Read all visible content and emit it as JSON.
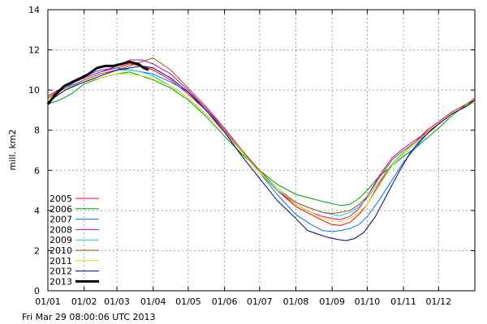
{
  "chart_data": {
    "type": "line",
    "ylabel": "mill. km2",
    "ylim": [
      0,
      14
    ],
    "yticks": [
      "0",
      "2",
      "4",
      "6",
      "8",
      "10",
      "12",
      "14"
    ],
    "xlim": [
      0,
      365
    ],
    "xticks": [
      {
        "label": "01/01",
        "day": 0
      },
      {
        "label": "01/02",
        "day": 31
      },
      {
        "label": "01/03",
        "day": 59
      },
      {
        "label": "01/04",
        "day": 90
      },
      {
        "label": "01/05",
        "day": 120
      },
      {
        "label": "01/06",
        "day": 151
      },
      {
        "label": "01/07",
        "day": 181
      },
      {
        "label": "01/08",
        "day": 212
      },
      {
        "label": "01/09",
        "day": 243
      },
      {
        "label": "01/10",
        "day": 273
      },
      {
        "label": "01/11",
        "day": 304
      },
      {
        "label": "01/12",
        "day": 334
      }
    ],
    "grid": true,
    "legend_position": "lower-left",
    "footer": "Fri Mar 29 08:00:06 UTC 2013",
    "series": [
      {
        "name": "2005",
        "color": "#ff0000",
        "width": 1,
        "x": [
          0,
          15,
          31,
          45,
          59,
          70,
          80,
          90,
          105,
          120,
          135,
          151,
          166,
          181,
          196,
          212,
          225,
          235,
          243,
          250,
          258,
          266,
          273,
          283,
          294,
          304,
          314,
          324,
          334,
          345,
          358,
          365
        ],
        "y": [
          9.7,
          10.2,
          10.6,
          10.9,
          11.1,
          11.3,
          11.2,
          11.0,
          10.5,
          9.8,
          9.0,
          8.0,
          6.9,
          5.9,
          5.0,
          4.2,
          3.8,
          3.5,
          3.3,
          3.25,
          3.4,
          3.8,
          4.3,
          5.3,
          6.3,
          6.9,
          7.4,
          8.0,
          8.4,
          8.9,
          9.3,
          9.6
        ]
      },
      {
        "name": "2006",
        "color": "#00a000",
        "width": 1,
        "x": [
          0,
          10,
          20,
          31,
          45,
          59,
          70,
          80,
          90,
          105,
          120,
          135,
          151,
          166,
          181,
          196,
          212,
          225,
          235,
          243,
          250,
          258,
          266,
          273,
          283,
          294,
          304,
          314,
          324,
          334,
          345,
          358,
          365
        ],
        "y": [
          9.3,
          9.5,
          9.8,
          10.3,
          10.6,
          10.8,
          10.9,
          10.7,
          10.5,
          10.1,
          9.5,
          8.7,
          7.7,
          6.8,
          6.0,
          5.3,
          4.8,
          4.6,
          4.45,
          4.35,
          4.25,
          4.3,
          4.6,
          5.0,
          5.7,
          6.2,
          6.7,
          7.1,
          7.6,
          8.1,
          8.7,
          9.3,
          9.5
        ]
      },
      {
        "name": "2007",
        "color": "#0070ff",
        "width": 1,
        "x": [
          0,
          15,
          31,
          45,
          59,
          70,
          80,
          90,
          105,
          120,
          135,
          151,
          166,
          181,
          196,
          212,
          225,
          235,
          243,
          250,
          258,
          266,
          273,
          283,
          294,
          304,
          314,
          324,
          334,
          345,
          358,
          365
        ],
        "y": [
          9.6,
          10.1,
          10.7,
          11.0,
          11.1,
          11.0,
          10.9,
          10.8,
          10.4,
          9.9,
          9.1,
          8.1,
          7.0,
          5.9,
          4.8,
          3.8,
          3.3,
          3.0,
          2.95,
          3.0,
          3.1,
          3.3,
          3.7,
          4.5,
          5.5,
          6.4,
          7.1,
          7.8,
          8.3,
          8.8,
          9.2,
          9.4
        ]
      },
      {
        "name": "2008",
        "color": "#cc00cc",
        "width": 1,
        "x": [
          0,
          15,
          31,
          45,
          59,
          70,
          80,
          90,
          105,
          120,
          135,
          151,
          166,
          181,
          196,
          212,
          225,
          235,
          243,
          250,
          258,
          266,
          273,
          283,
          294,
          304,
          314,
          324,
          334,
          345,
          358,
          365
        ],
        "y": [
          9.6,
          10.2,
          10.6,
          10.9,
          11.2,
          11.5,
          11.5,
          11.3,
          10.8,
          10.0,
          9.1,
          8.0,
          6.9,
          5.9,
          5.0,
          4.3,
          3.9,
          3.7,
          3.6,
          3.55,
          3.7,
          4.1,
          4.7,
          5.7,
          6.6,
          7.1,
          7.5,
          7.9,
          8.3,
          8.8,
          9.2,
          9.5
        ]
      },
      {
        "name": "2009",
        "color": "#00d0d0",
        "width": 1,
        "x": [
          0,
          15,
          31,
          45,
          59,
          70,
          80,
          90,
          105,
          120,
          135,
          151,
          166,
          181,
          196,
          212,
          225,
          235,
          243,
          250,
          258,
          266,
          273,
          283,
          294,
          304,
          314,
          324,
          334,
          345,
          358,
          365
        ],
        "y": [
          9.5,
          10.0,
          10.5,
          10.8,
          11.0,
          11.0,
          10.9,
          10.7,
          10.2,
          9.6,
          8.8,
          7.9,
          6.9,
          5.9,
          5.0,
          4.4,
          4.1,
          3.9,
          3.8,
          3.75,
          3.9,
          4.2,
          4.6,
          5.4,
          6.3,
          6.9,
          7.4,
          7.9,
          8.3,
          8.8,
          9.2,
          9.4
        ]
      },
      {
        "name": "2010",
        "color": "#b05000",
        "width": 1,
        "x": [
          0,
          15,
          31,
          45,
          59,
          70,
          80,
          90,
          105,
          120,
          135,
          151,
          166,
          181,
          196,
          212,
          225,
          235,
          243,
          250,
          258,
          266,
          273,
          283,
          294,
          304,
          314,
          324,
          334,
          345,
          358,
          365
        ],
        "y": [
          9.6,
          10.1,
          10.5,
          10.8,
          11.0,
          11.2,
          11.4,
          11.6,
          11.0,
          10.1,
          9.2,
          8.1,
          7.0,
          6.0,
          5.1,
          4.4,
          4.1,
          3.9,
          3.85,
          3.9,
          4.0,
          4.3,
          4.7,
          5.6,
          6.5,
          7.0,
          7.4,
          7.9,
          8.3,
          8.8,
          9.2,
          9.5
        ]
      },
      {
        "name": "2011",
        "color": "#e0e000",
        "width": 1,
        "x": [
          0,
          15,
          31,
          45,
          59,
          70,
          80,
          90,
          105,
          120,
          135,
          151,
          166,
          181,
          196,
          212,
          225,
          235,
          243,
          250,
          258,
          266,
          273,
          283,
          294,
          304,
          314,
          324,
          334,
          345,
          358,
          365
        ],
        "y": [
          9.5,
          10.0,
          10.4,
          10.6,
          10.8,
          10.8,
          10.7,
          10.6,
          10.2,
          9.6,
          8.8,
          7.9,
          6.9,
          5.9,
          5.1,
          4.3,
          3.9,
          3.6,
          3.5,
          3.45,
          3.6,
          3.9,
          4.3,
          5.2,
          6.2,
          6.8,
          7.3,
          7.8,
          8.3,
          8.8,
          9.2,
          9.4
        ]
      },
      {
        "name": "2012",
        "color": "#000080",
        "width": 1,
        "x": [
          0,
          15,
          31,
          45,
          59,
          70,
          80,
          90,
          105,
          120,
          135,
          151,
          166,
          181,
          196,
          212,
          222,
          232,
          240,
          248,
          255,
          262,
          270,
          280,
          290,
          300,
          310,
          320,
          334,
          345,
          358,
          365
        ],
        "y": [
          9.4,
          10.0,
          10.4,
          10.7,
          11.0,
          11.1,
          11.2,
          11.1,
          10.6,
          9.9,
          9.0,
          7.9,
          6.7,
          5.6,
          4.5,
          3.6,
          3.0,
          2.8,
          2.65,
          2.55,
          2.5,
          2.6,
          2.9,
          3.7,
          4.8,
          5.9,
          6.9,
          7.6,
          8.3,
          8.8,
          9.2,
          9.5
        ]
      },
      {
        "name": "2013",
        "color": "#000000",
        "width": 3,
        "x": [
          0,
          7,
          14,
          21,
          28,
          35,
          42,
          49,
          56,
          63,
          70,
          77,
          82,
          86
        ],
        "y": [
          9.3,
          9.8,
          10.2,
          10.4,
          10.6,
          10.8,
          11.1,
          11.2,
          11.2,
          11.3,
          11.4,
          11.3,
          11.1,
          11.0
        ]
      }
    ]
  }
}
